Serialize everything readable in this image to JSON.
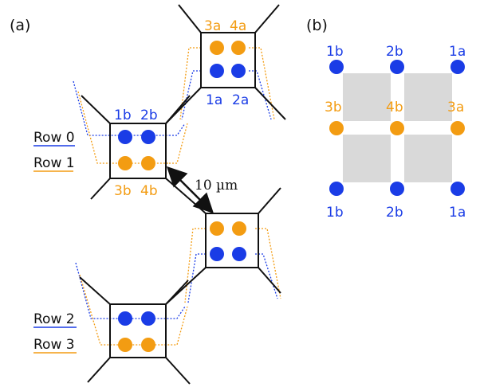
{
  "panel_a": {
    "label": "(a)"
  },
  "panel_b": {
    "label": "(b)"
  },
  "colors": {
    "blue": "#1a3ce6",
    "orange": "#f39c12",
    "line": "#111111",
    "square": "#d9d9d9"
  },
  "rows": [
    "Row 0",
    "Row 1",
    "Row 2",
    "Row 3"
  ],
  "a_labels": {
    "top_upper": [
      "3a",
      "4a"
    ],
    "top_lower": [
      "1a",
      "2a"
    ],
    "left_upper": [
      "1b",
      "2b"
    ],
    "left_lower": [
      "3b",
      "4b"
    ]
  },
  "distance": "10 µm",
  "b_labels": {
    "row_top": [
      "1b",
      "2b",
      "1a"
    ],
    "row_mid": [
      "3b",
      "4b",
      "3a"
    ],
    "row_bot": [
      "1b",
      "2b",
      "1a"
    ]
  }
}
